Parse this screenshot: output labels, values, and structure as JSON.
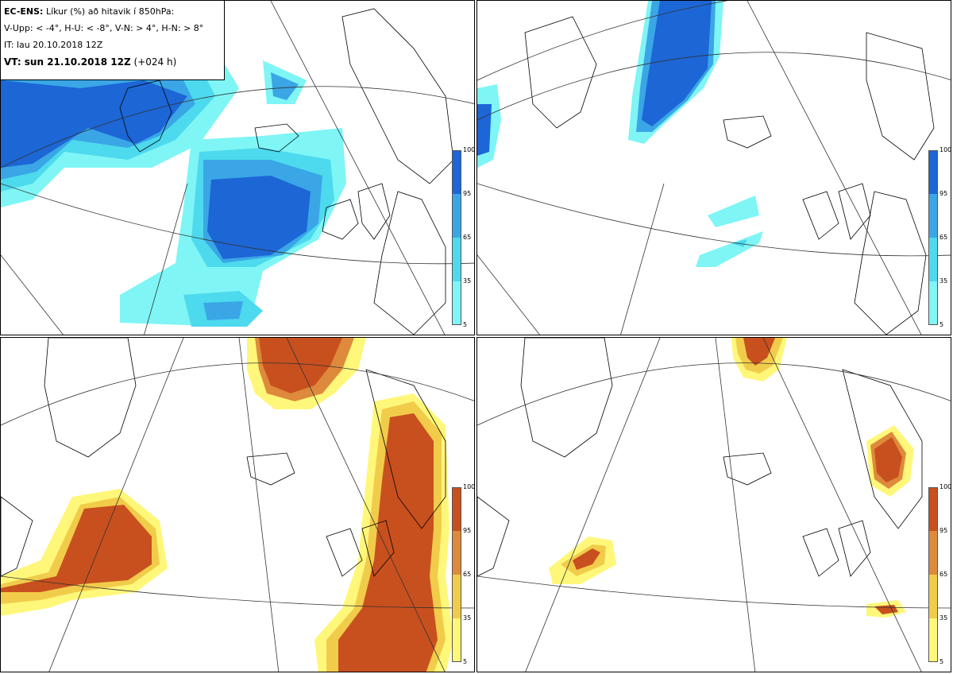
{
  "header": {
    "model_label": "EC-ENS:",
    "title_rest": "Líkur (%) að hitavik í 850hPa:",
    "legend_line": "V-Upp: < -4°, H-U: < -8°, V-N: > 4°, H-N: > 8°",
    "init_time": "IT: lau 20.10.2018 12Z",
    "valid_label": "VT: sun 21.10.2018 12Z",
    "lead": "(+024 h)"
  },
  "colorbar": {
    "ticks": [
      "100",
      "95",
      "65",
      "35",
      "5"
    ]
  },
  "colors": {
    "cold": [
      "#7ff5f5",
      "#4dd9ee",
      "#3aa6e6",
      "#1c66d6"
    ],
    "warm": [
      "#fff77a",
      "#f1cc4a",
      "#de8a3c",
      "#c8501e"
    ]
  },
  "panels": [
    {
      "id": "v-upp",
      "scheme": "cold"
    },
    {
      "id": "h-u",
      "scheme": "cold"
    },
    {
      "id": "v-n",
      "scheme": "warm"
    },
    {
      "id": "h-n",
      "scheme": "warm"
    }
  ]
}
